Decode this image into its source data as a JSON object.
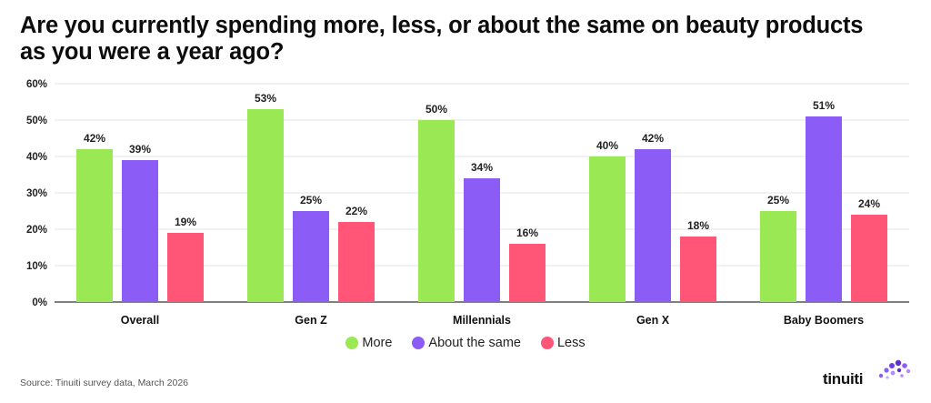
{
  "title": "Are you currently spending more, less, or about the same on beauty products as you were a year ago?",
  "source": "Source: Tinuiti survey data, March 2026",
  "logo_text": "tinuiti",
  "colors": {
    "more": "#9be855",
    "same": "#8b5cf6",
    "less": "#ff5577"
  },
  "chart_data": {
    "type": "bar",
    "categories": [
      "Overall",
      "Gen Z",
      "Millennials",
      "Gen X",
      "Baby Boomers"
    ],
    "series": [
      {
        "name": "More",
        "color": "#9be855",
        "values": [
          42,
          53,
          50,
          40,
          25
        ]
      },
      {
        "name": "About the same",
        "color": "#8b5cf6",
        "values": [
          39,
          25,
          34,
          42,
          51
        ]
      },
      {
        "name": "Less",
        "color": "#ff5577",
        "values": [
          19,
          22,
          16,
          18,
          24
        ]
      }
    ],
    "ylim": [
      0,
      60
    ],
    "yticks": [
      "0%",
      "10%",
      "20%",
      "30%",
      "40%",
      "50%",
      "60%"
    ],
    "value_suffix": "%",
    "grid": true,
    "legend": "bottom-center"
  }
}
